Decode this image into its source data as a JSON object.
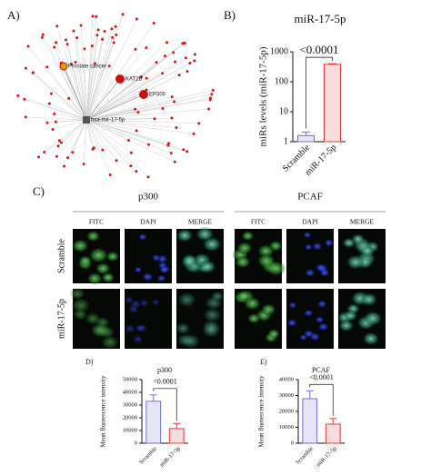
{
  "network": {
    "label": "A)",
    "nodes": [
      "Prostate cancer",
      "KAT2B",
      "EP300",
      "hsa-mir-17-5p"
    ]
  },
  "panel_c": {
    "label": "C)",
    "groups": [
      "p300",
      "PCAF"
    ],
    "channels": [
      "FITC",
      "DAPI",
      "MERGE"
    ],
    "rows": [
      "Scramble",
      "miR-17-5p"
    ]
  },
  "chart_data": [
    {
      "type": "bar",
      "label": "B)",
      "title": "miR-17-5p",
      "ylabel": "miRs levels (miR-17-5p)",
      "categories": [
        "Scramble",
        "miR-17-5p"
      ],
      "values": [
        1.6,
        380
      ],
      "errors": [
        0.5,
        20
      ],
      "colors": [
        "#6f6fd0",
        "#e03c3c"
      ],
      "yscale": "log",
      "ylim": [
        1,
        1000
      ],
      "yticks": [
        1,
        10,
        100,
        1000
      ],
      "annotation": "<0.0001"
    },
    {
      "type": "bar",
      "label": "D)",
      "title": "p300",
      "ylabel": "Mean fluorescence intensity",
      "categories": [
        "Scramble",
        "miR-17-5p"
      ],
      "values": [
        33000,
        11500
      ],
      "errors": [
        5000,
        4000
      ],
      "colors": [
        "#6f6fd0",
        "#e03c3c"
      ],
      "yscale": "linear",
      "ylim": [
        0,
        50000
      ],
      "yticks": [
        0,
        10000,
        20000,
        30000,
        40000,
        50000
      ],
      "annotation": "<0.0001"
    },
    {
      "type": "bar",
      "label": "E)",
      "title": "PCAF",
      "ylabel": "Mean fluorescence intensity",
      "categories": [
        "Scramble",
        "miR-17-5p"
      ],
      "values": [
        28000,
        12000
      ],
      "errors": [
        5000,
        3500
      ],
      "colors": [
        "#6f6fd0",
        "#e03c3c"
      ],
      "yscale": "linear",
      "ylim": [
        0,
        40000
      ],
      "yticks": [
        0,
        10000,
        20000,
        30000,
        40000
      ],
      "annotation": "<0.0001"
    }
  ]
}
